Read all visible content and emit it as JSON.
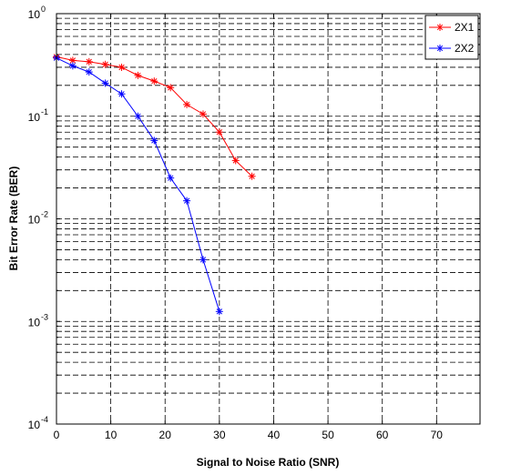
{
  "chart_data": {
    "type": "line",
    "title": "",
    "xlabel": "Signal to Noise Ratio (SNR)",
    "ylabel": "Bit Error Rate (BER)",
    "xlim": [
      0,
      78
    ],
    "ylim": [
      0.0001,
      1
    ],
    "yscale": "log",
    "grid": true,
    "legend_position": "top-right",
    "x_ticks": [
      0,
      10,
      20,
      30,
      40,
      50,
      60,
      70
    ],
    "x_tick_labels": [
      "0",
      "10",
      "20",
      "30",
      "40",
      "50",
      "60",
      "70"
    ],
    "y_ticks": [
      {
        "value": 1,
        "base": "10",
        "exp": "0"
      },
      {
        "value": 0.1,
        "base": "10",
        "exp": "-1"
      },
      {
        "value": 0.01,
        "base": "10",
        "exp": "-2"
      },
      {
        "value": 0.001,
        "base": "10",
        "exp": "-3"
      },
      {
        "value": 0.0001,
        "base": "10",
        "exp": "-4"
      }
    ],
    "series": [
      {
        "name": "2X1",
        "color": "#ff0000",
        "marker": "*",
        "x": [
          0,
          3,
          6,
          9,
          12,
          15,
          18,
          21,
          24,
          27,
          30,
          33,
          36
        ],
        "y": [
          0.38,
          0.35,
          0.34,
          0.32,
          0.3,
          0.25,
          0.22,
          0.19,
          0.13,
          0.105,
          0.07,
          0.037,
          0.026
        ]
      },
      {
        "name": "2X2",
        "color": "#0000ff",
        "marker": "*",
        "x": [
          0,
          3,
          6,
          9,
          12,
          15,
          18,
          21,
          24,
          27,
          30
        ],
        "y": [
          0.37,
          0.31,
          0.27,
          0.21,
          0.165,
          0.1,
          0.058,
          0.025,
          0.015,
          0.004,
          0.00125
        ]
      }
    ]
  }
}
